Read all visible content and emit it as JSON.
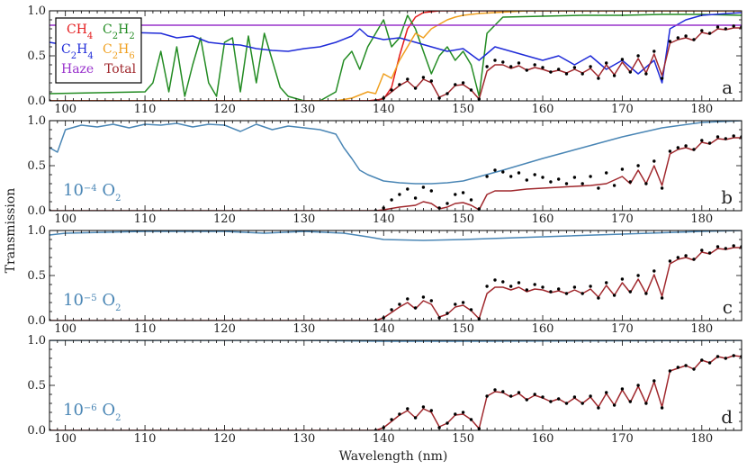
{
  "chart_data": {
    "type": "line",
    "xlabel": "Wavelength (nm)",
    "ylabel": "Transmission",
    "xlim": [
      98,
      185
    ],
    "ylim": [
      0,
      1
    ],
    "x_ticks": [
      100,
      110,
      120,
      130,
      140,
      150,
      160,
      170,
      180
    ],
    "y_ticks": [
      0.0,
      0.5,
      1.0
    ],
    "y_tick_labels": [
      "0.0",
      "0.5",
      "1.0"
    ],
    "legend": {
      "placement": "top-left",
      "entries": [
        {
          "base": "CH",
          "sub": "4",
          "color": "#e41a1c"
        },
        {
          "base": "C",
          "sub": "2",
          "base2": "H",
          "sub2": "2",
          "color": "#228b22"
        },
        {
          "base": "C",
          "sub": "2",
          "base2": "H",
          "sub2": "4",
          "color": "#1f2bd8"
        },
        {
          "base": "C",
          "sub": "2",
          "base2": "H",
          "sub2": "6",
          "color": "#f0a020"
        },
        {
          "base": "Haze",
          "sub": "",
          "color": "#9932cc"
        },
        {
          "base": "Total",
          "sub": "",
          "color": "#a0282d"
        }
      ]
    },
    "model_color": "#a0282d",
    "observed_color": "#000000",
    "o2_color": "#4a86b5",
    "panels": [
      {
        "letter": "a",
        "species": [
          {
            "name": "CH4",
            "color": "#e41a1c",
            "x": [
              98,
              138,
              140,
              141,
              142,
              143,
              144,
              145,
              147,
              150,
              185
            ],
            "y": [
              0,
              0,
              0.02,
              0.15,
              0.5,
              0.8,
              0.93,
              0.98,
              1.0,
              1.0,
              1.0
            ]
          },
          {
            "name": "C2H2",
            "color": "#228b22",
            "x": [
              98,
              104,
              110,
              111,
              112,
              113,
              114,
              115,
              116,
              117,
              118,
              119,
              120,
              121,
              122,
              123,
              124,
              125,
              126,
              127,
              128,
              130,
              132,
              134,
              135,
              136,
              137,
              138,
              139,
              140,
              141,
              142,
              143,
              144,
              145,
              146,
              147,
              148,
              149,
              150,
              151,
              152,
              153,
              155,
              160,
              165,
              170,
              175,
              180,
              185
            ],
            "y": [
              0.08,
              0.09,
              0.1,
              0.2,
              0.55,
              0.1,
              0.6,
              0.05,
              0.4,
              0.7,
              0.2,
              0.05,
              0.65,
              0.7,
              0.1,
              0.72,
              0.2,
              0.75,
              0.45,
              0.15,
              0.05,
              0.0,
              0.0,
              0.1,
              0.45,
              0.55,
              0.35,
              0.6,
              0.75,
              0.9,
              0.6,
              0.7,
              0.95,
              0.8,
              0.55,
              0.3,
              0.5,
              0.6,
              0.45,
              0.55,
              0.4,
              0.05,
              0.75,
              0.93,
              0.94,
              0.95,
              0.95,
              0.96,
              0.96,
              0.95
            ]
          },
          {
            "name": "C2H4",
            "color": "#1f2bd8",
            "x": [
              98,
              100,
              102,
              104,
              108,
              112,
              114,
              116,
              118,
              120,
              122,
              124,
              126,
              128,
              130,
              132,
              134,
              136,
              137,
              138,
              140,
              142,
              144,
              146,
              148,
              150,
              152,
              154,
              156,
              158,
              160,
              162,
              164,
              166,
              168,
              170,
              172,
              174,
              175,
              176,
              178,
              180,
              185
            ],
            "y": [
              0.65,
              0.62,
              0.7,
              0.8,
              0.76,
              0.75,
              0.7,
              0.72,
              0.65,
              0.63,
              0.62,
              0.58,
              0.56,
              0.55,
              0.58,
              0.6,
              0.65,
              0.72,
              0.8,
              0.72,
              0.68,
              0.7,
              0.65,
              0.6,
              0.55,
              0.58,
              0.45,
              0.6,
              0.55,
              0.5,
              0.45,
              0.5,
              0.4,
              0.5,
              0.35,
              0.45,
              0.3,
              0.45,
              0.2,
              0.8,
              0.9,
              0.95,
              0.98
            ]
          },
          {
            "name": "C2H6",
            "color": "#f0a020",
            "x": [
              98,
              134,
              136,
              138,
              139,
              140,
              141,
              142,
              143,
              144,
              145,
              146,
              147,
              148,
              149,
              150,
              152,
              154,
              156,
              158,
              160,
              185
            ],
            "y": [
              0,
              0,
              0.03,
              0.1,
              0.08,
              0.3,
              0.25,
              0.45,
              0.6,
              0.75,
              0.7,
              0.8,
              0.85,
              0.9,
              0.93,
              0.95,
              0.97,
              0.98,
              0.99,
              1.0,
              1.0,
              1.0
            ]
          },
          {
            "name": "Haze",
            "color": "#9932cc",
            "x": [
              98,
              185
            ],
            "y": [
              0.84,
              0.84
            ]
          }
        ]
      },
      {
        "letter": "b",
        "o2_exp": "−4",
        "o2_species": "O",
        "o2_sub": "2",
        "o2_x": [
          98,
          99,
          100,
          102,
          104,
          106,
          108,
          110,
          112,
          114,
          116,
          118,
          120,
          122,
          124,
          126,
          128,
          130,
          132,
          134,
          135,
          136,
          137,
          138,
          140,
          142,
          144,
          146,
          148,
          150,
          155,
          160,
          165,
          170,
          175,
          180,
          185
        ],
        "o2_y": [
          0.7,
          0.65,
          0.9,
          0.95,
          0.93,
          0.96,
          0.92,
          0.96,
          0.95,
          0.97,
          0.93,
          0.96,
          0.95,
          0.88,
          0.96,
          0.9,
          0.94,
          0.92,
          0.9,
          0.85,
          0.7,
          0.58,
          0.45,
          0.4,
          0.33,
          0.31,
          0.3,
          0.3,
          0.31,
          0.33,
          0.45,
          0.58,
          0.7,
          0.82,
          0.92,
          0.98,
          1.0
        ]
      },
      {
        "letter": "c",
        "o2_exp": "−5",
        "o2_species": "O",
        "o2_sub": "2",
        "o2_x": [
          98,
          100,
          110,
          120,
          125,
          130,
          135,
          138,
          140,
          145,
          150,
          160,
          170,
          180,
          185
        ],
        "o2_y": [
          0.95,
          0.97,
          0.99,
          0.99,
          0.97,
          0.99,
          0.97,
          0.93,
          0.9,
          0.89,
          0.9,
          0.93,
          0.96,
          0.99,
          1.0
        ]
      },
      {
        "letter": "d",
        "o2_exp": "−6",
        "o2_species": "O",
        "o2_sub": "2",
        "o2_x": [
          98,
          130,
          140,
          150,
          185
        ],
        "o2_y": [
          1.0,
          1.0,
          0.99,
          0.99,
          1.0
        ]
      }
    ],
    "observed_spectrum": {
      "x": [
        98,
        139,
        140,
        141,
        142,
        143,
        144,
        145,
        146,
        147,
        148,
        149,
        150,
        151,
        152,
        153,
        154,
        155,
        156,
        157,
        158,
        159,
        160,
        161,
        162,
        163,
        164,
        165,
        166,
        167,
        168,
        169,
        170,
        171,
        172,
        173,
        174,
        175,
        176,
        177,
        178,
        179,
        180,
        181,
        182,
        183,
        184,
        185
      ],
      "y": [
        0.0,
        0.0,
        0.03,
        0.12,
        0.18,
        0.24,
        0.14,
        0.26,
        0.22,
        0.03,
        0.08,
        0.18,
        0.2,
        0.12,
        0.02,
        0.38,
        0.45,
        0.43,
        0.38,
        0.42,
        0.34,
        0.4,
        0.37,
        0.32,
        0.35,
        0.3,
        0.37,
        0.3,
        0.38,
        0.25,
        0.42,
        0.28,
        0.46,
        0.32,
        0.5,
        0.3,
        0.55,
        0.25,
        0.66,
        0.7,
        0.72,
        0.68,
        0.78,
        0.75,
        0.82,
        0.8,
        0.83,
        0.82
      ]
    },
    "model_spectra": {
      "a": {
        "x": [
          98,
          139,
          140,
          141,
          142,
          143,
          144,
          145,
          146,
          147,
          148,
          149,
          150,
          151,
          152,
          153,
          154,
          155,
          156,
          157,
          158,
          159,
          160,
          161,
          162,
          163,
          164,
          165,
          166,
          167,
          168,
          169,
          170,
          171,
          172,
          173,
          174,
          175,
          176,
          177,
          178,
          179,
          180,
          181,
          182,
          183,
          184,
          185
        ],
        "y": [
          0.0,
          0.0,
          0.03,
          0.1,
          0.17,
          0.22,
          0.14,
          0.24,
          0.2,
          0.04,
          0.08,
          0.17,
          0.18,
          0.12,
          0.02,
          0.33,
          0.4,
          0.4,
          0.36,
          0.39,
          0.34,
          0.37,
          0.35,
          0.32,
          0.34,
          0.31,
          0.35,
          0.31,
          0.36,
          0.27,
          0.4,
          0.29,
          0.43,
          0.32,
          0.47,
          0.31,
          0.52,
          0.28,
          0.64,
          0.68,
          0.7,
          0.67,
          0.76,
          0.74,
          0.8,
          0.79,
          0.81,
          0.81
        ]
      },
      "b": {
        "x": [
          98,
          139,
          140,
          142,
          144,
          145,
          146,
          147,
          148,
          149,
          150,
          151,
          152,
          153,
          154,
          156,
          158,
          160,
          162,
          164,
          166,
          168,
          170,
          171,
          172,
          173,
          174,
          175,
          176,
          177,
          178,
          179,
          180,
          181,
          182,
          183,
          184,
          185
        ],
        "y": [
          0.0,
          0.0,
          0.01,
          0.04,
          0.06,
          0.1,
          0.08,
          0.02,
          0.04,
          0.08,
          0.09,
          0.06,
          0.01,
          0.18,
          0.22,
          0.22,
          0.24,
          0.25,
          0.26,
          0.27,
          0.28,
          0.3,
          0.38,
          0.3,
          0.45,
          0.3,
          0.5,
          0.28,
          0.63,
          0.68,
          0.7,
          0.67,
          0.76,
          0.74,
          0.8,
          0.79,
          0.81,
          0.81
        ]
      },
      "c": {
        "x": [
          98,
          139,
          140,
          141,
          142,
          143,
          144,
          145,
          146,
          147,
          148,
          149,
          150,
          151,
          152,
          153,
          154,
          155,
          156,
          157,
          158,
          159,
          160,
          161,
          162,
          163,
          164,
          165,
          166,
          167,
          168,
          169,
          170,
          171,
          172,
          173,
          174,
          175,
          176,
          177,
          178,
          179,
          180,
          181,
          182,
          183,
          184,
          185
        ],
        "y": [
          0.0,
          0.0,
          0.03,
          0.09,
          0.15,
          0.2,
          0.13,
          0.22,
          0.18,
          0.04,
          0.07,
          0.15,
          0.17,
          0.11,
          0.02,
          0.3,
          0.37,
          0.37,
          0.34,
          0.37,
          0.32,
          0.35,
          0.34,
          0.31,
          0.33,
          0.3,
          0.34,
          0.3,
          0.35,
          0.26,
          0.39,
          0.28,
          0.42,
          0.31,
          0.46,
          0.3,
          0.51,
          0.27,
          0.63,
          0.68,
          0.7,
          0.67,
          0.76,
          0.74,
          0.8,
          0.79,
          0.81,
          0.81
        ]
      },
      "d": {
        "x": [
          98,
          139,
          140,
          141,
          142,
          143,
          144,
          145,
          146,
          147,
          148,
          149,
          150,
          151,
          152,
          153,
          154,
          155,
          156,
          157,
          158,
          159,
          160,
          161,
          162,
          163,
          164,
          165,
          166,
          167,
          168,
          169,
          170,
          171,
          172,
          173,
          174,
          175,
          176,
          177,
          178,
          179,
          180,
          181,
          182,
          183,
          184,
          185
        ],
        "y": [
          0.0,
          0.0,
          0.03,
          0.1,
          0.17,
          0.22,
          0.14,
          0.24,
          0.2,
          0.04,
          0.08,
          0.17,
          0.18,
          0.12,
          0.02,
          0.38,
          0.43,
          0.42,
          0.37,
          0.41,
          0.34,
          0.39,
          0.36,
          0.32,
          0.35,
          0.3,
          0.36,
          0.3,
          0.37,
          0.26,
          0.41,
          0.28,
          0.45,
          0.31,
          0.49,
          0.3,
          0.54,
          0.26,
          0.66,
          0.69,
          0.72,
          0.68,
          0.78,
          0.75,
          0.82,
          0.8,
          0.83,
          0.82
        ]
      }
    }
  }
}
